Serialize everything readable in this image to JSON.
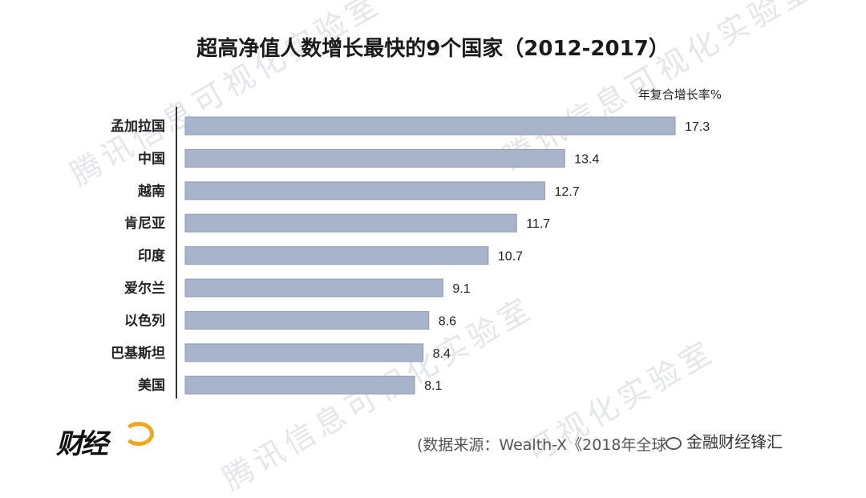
{
  "watermarks": [
    "腾讯信息可视化实验室",
    "腾讯信息可视化实验室",
    "腾讯信息可视化实验室",
    "可视化实验室"
  ],
  "source_text": "(数据来源：Wealth-X《2018年全球",
  "wechat_text": "金融财经锋汇",
  "logo_text": "财经",
  "chart_data": {
    "type": "bar",
    "orientation": "horizontal",
    "title": "超高净值人数增长最快的9个国家（2012-2017）",
    "unit_label": "年复合增长率%",
    "categories": [
      "孟加拉国",
      "中国",
      "越南",
      "肯尼亚",
      "印度",
      "爱尔兰",
      "以色列",
      "巴基斯坦",
      "美国"
    ],
    "values": [
      17.3,
      13.4,
      12.7,
      11.7,
      10.7,
      9.1,
      8.6,
      8.4,
      8.1
    ],
    "value_labels": [
      "17.3",
      "13.4",
      "12.7",
      "11.7",
      "10.7",
      "9.1",
      "8.6",
      "8.4",
      "8.1"
    ],
    "bar_color": "#a8b3cc",
    "bar_border_color": "#8e9ab6",
    "axis_color": "#333333",
    "xlim": [
      0,
      17.3
    ],
    "grid": false,
    "legend": "none"
  }
}
